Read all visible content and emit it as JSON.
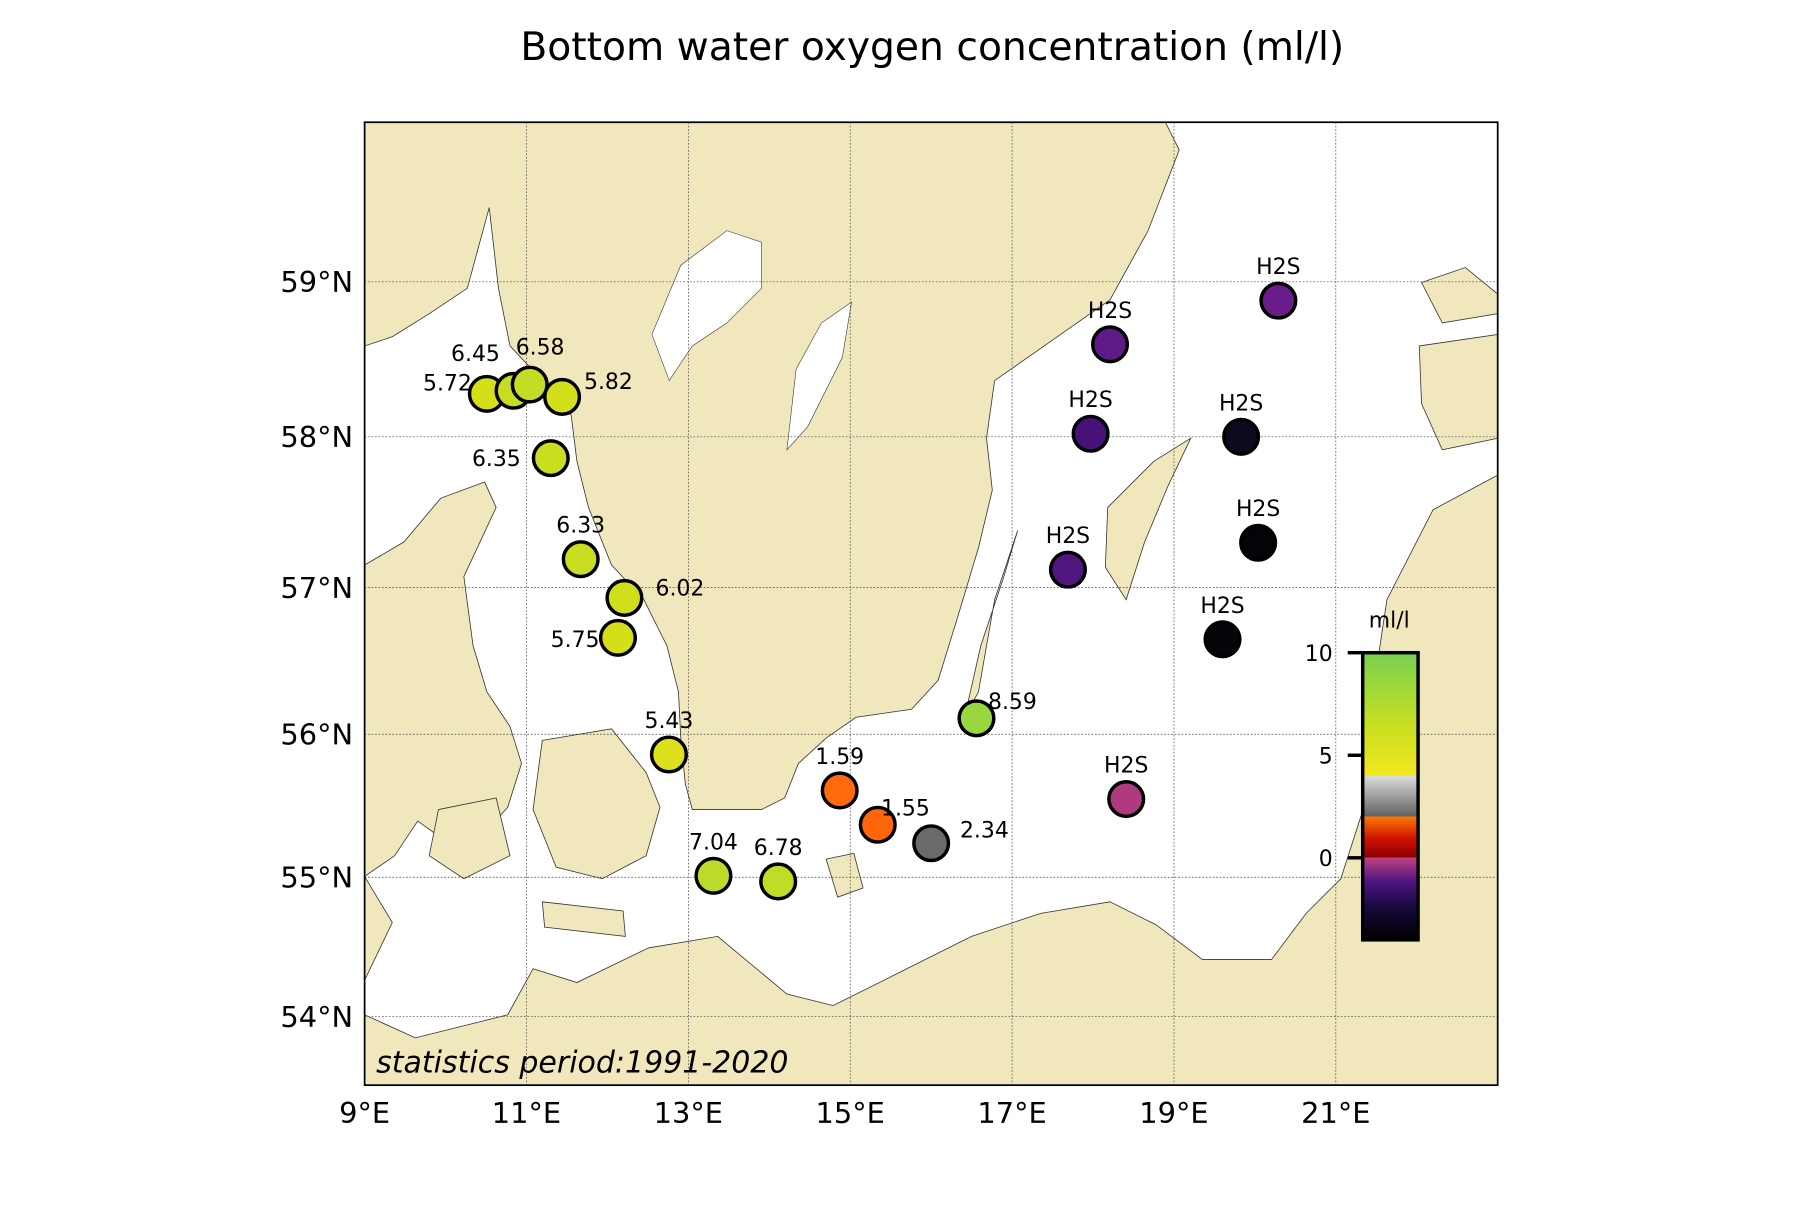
{
  "chart_data": {
    "type": "scatter",
    "title": "Bottom water oxygen concentration (ml/l)",
    "annotation": "statistics period:1991-2020",
    "xlim": [
      9,
      23
    ],
    "ylim": [
      53.5,
      60
    ],
    "grid": true,
    "x_ticks": [
      {
        "v": 9,
        "label": "9°E"
      },
      {
        "v": 11,
        "label": "11°E"
      },
      {
        "v": 13,
        "label": "13°E"
      },
      {
        "v": 15,
        "label": "15°E"
      },
      {
        "v": 17,
        "label": "17°E"
      },
      {
        "v": 19,
        "label": "19°E"
      },
      {
        "v": 21,
        "label": "21°E"
      }
    ],
    "y_ticks": [
      {
        "v": 59,
        "label": "59°N"
      },
      {
        "v": 58,
        "label": "58°N"
      },
      {
        "v": 57,
        "label": "57°N"
      },
      {
        "v": 56,
        "label": "56°N"
      },
      {
        "v": 55,
        "label": "55°N"
      },
      {
        "v": 54,
        "label": "54°N"
      }
    ],
    "colorbar": {
      "label": "ml/l",
      "ticks": [
        {
          "v": 10,
          "label": "10"
        },
        {
          "v": 5,
          "label": "5"
        },
        {
          "v": 0,
          "label": "0"
        }
      ],
      "range": [
        -4,
        10
      ]
    },
    "stations": [
      {
        "lon": 10.51,
        "lat": 58.28,
        "value": "5.72",
        "color": "#d4df1a"
      },
      {
        "lon": 10.84,
        "lat": 58.3,
        "value": "6.45",
        "color": "#c8dd22"
      },
      {
        "lon": 11.04,
        "lat": 58.34,
        "value": "6.58",
        "color": "#c4dc26"
      },
      {
        "lon": 11.44,
        "lat": 58.26,
        "value": "5.82",
        "color": "#d3df1a"
      },
      {
        "lon": 11.3,
        "lat": 57.86,
        "value": "6.35",
        "color": "#c9dd21"
      },
      {
        "lon": 11.67,
        "lat": 57.19,
        "value": "6.33",
        "color": "#c9dd21"
      },
      {
        "lon": 12.21,
        "lat": 56.93,
        "value": "6.02",
        "color": "#d0de1c"
      },
      {
        "lon": 12.13,
        "lat": 56.66,
        "value": "5.75",
        "color": "#d4df1a"
      },
      {
        "lon": 12.76,
        "lat": 55.86,
        "value": "5.43",
        "color": "#dde01a"
      },
      {
        "lon": 13.31,
        "lat": 55.01,
        "value": "7.04",
        "color": "#bcdb2a"
      },
      {
        "lon": 14.11,
        "lat": 54.97,
        "value": "6.78",
        "color": "#c1dc28"
      },
      {
        "lon": 14.87,
        "lat": 55.61,
        "value": "1.59",
        "color": "#ff6a0a"
      },
      {
        "lon": 15.34,
        "lat": 55.37,
        "value": "1.55",
        "color": "#ff660a"
      },
      {
        "lon": 16.0,
        "lat": 55.24,
        "value": "2.34",
        "color": "#6a6a6a"
      },
      {
        "lon": 16.56,
        "lat": 56.11,
        "value": "8.59",
        "color": "#98d83e"
      },
      {
        "lon": 18.21,
        "lat": 58.6,
        "value": "H2S",
        "color": "#5e1a86"
      },
      {
        "lon": 20.29,
        "lat": 58.88,
        "value": "H2S",
        "color": "#6a1c8a"
      },
      {
        "lon": 17.97,
        "lat": 58.02,
        "value": "H2S",
        "color": "#46127a"
      },
      {
        "lon": 19.83,
        "lat": 58.0,
        "value": "H2S",
        "color": "#0c0a1e"
      },
      {
        "lon": 20.04,
        "lat": 57.3,
        "value": "H2S",
        "color": "#050308"
      },
      {
        "lon": 17.69,
        "lat": 57.12,
        "value": "H2S",
        "color": "#501680"
      },
      {
        "lon": 19.6,
        "lat": 56.65,
        "value": "H2S",
        "color": "#060408"
      },
      {
        "lon": 18.41,
        "lat": 55.55,
        "value": "H2S",
        "color": "#b03a80"
      }
    ]
  },
  "colors": {
    "land": "#f0e8bc",
    "sea": "#ffffff"
  }
}
